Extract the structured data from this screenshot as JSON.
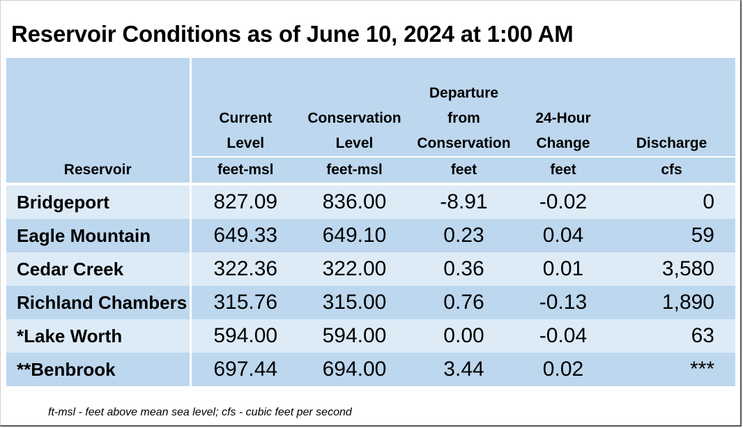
{
  "title": "Reservoir Conditions as of June 10, 2024 at 1:00 AM",
  "columns": [
    {
      "label_lines": [
        "Reservoir"
      ],
      "unit": ""
    },
    {
      "label_lines": [
        "Current",
        "Level"
      ],
      "unit": "feet-msl"
    },
    {
      "label_lines": [
        "Conservation",
        "Level"
      ],
      "unit": "feet-msl"
    },
    {
      "label_lines": [
        "Departure",
        "from",
        "Conservation"
      ],
      "unit": "feet"
    },
    {
      "label_lines": [
        "24-Hour",
        "Change"
      ],
      "unit": "feet"
    },
    {
      "label_lines": [
        "Discharge"
      ],
      "unit": "cfs"
    }
  ],
  "rows": [
    {
      "name": "Bridgeport",
      "current": "827.09",
      "conservation": "836.00",
      "departure": "-8.91",
      "change": "-0.02",
      "discharge": "0"
    },
    {
      "name": "Eagle Mountain",
      "current": "649.33",
      "conservation": "649.10",
      "departure": "0.23",
      "change": "0.04",
      "discharge": "59"
    },
    {
      "name": "Cedar Creek",
      "current": "322.36",
      "conservation": "322.00",
      "departure": "0.36",
      "change": "0.01",
      "discharge": "3,580"
    },
    {
      "name": "Richland Chambers",
      "current": "315.76",
      "conservation": "315.00",
      "departure": "0.76",
      "change": "-0.13",
      "discharge": "1,890"
    },
    {
      "name": "*Lake Worth",
      "current": "594.00",
      "conservation": "594.00",
      "departure": "0.00",
      "change": "-0.04",
      "discharge": "63"
    },
    {
      "name": "**Benbrook",
      "current": "697.44",
      "conservation": "694.00",
      "departure": "3.44",
      "change": "0.02",
      "discharge": "***"
    }
  ],
  "footnote": "ft-msl - feet above mean sea level; cfs - cubic feet per second",
  "colors": {
    "header_bg": "#bdd7ee",
    "row_light": "#ddebf7",
    "row_dark": "#bdd7ee"
  }
}
